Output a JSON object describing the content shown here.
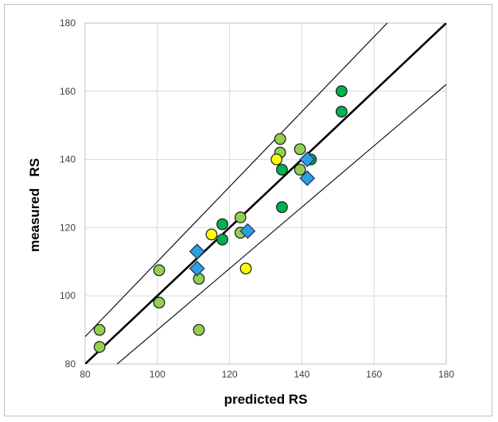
{
  "chart_data": {
    "type": "scatter",
    "title": "",
    "xlabel": "predicted RS",
    "ylabel": "measured   RS",
    "xlim": [
      80,
      180
    ],
    "ylim": [
      80,
      180
    ],
    "x_ticks": [
      80,
      100,
      120,
      140,
      160,
      180
    ],
    "y_ticks": [
      80,
      100,
      120,
      140,
      160,
      180
    ],
    "grid": true,
    "legend": "none",
    "reference_lines": [
      {
        "kind": "identity",
        "slope": 1,
        "intercept": 0,
        "emphasis": "bold"
      },
      {
        "kind": "upper-bound",
        "slope": 1.1,
        "intercept": 0,
        "emphasis": "thin"
      },
      {
        "kind": "lower-bound",
        "slope": 0.9,
        "intercept": 0,
        "emphasis": "thin"
      }
    ],
    "series": [
      {
        "marker": "circle",
        "color": "#92d050",
        "points": [
          [
            84,
            90
          ],
          [
            84,
            85
          ],
          [
            100.5,
            107.5
          ],
          [
            100.5,
            98
          ],
          [
            111.5,
            105
          ],
          [
            111.5,
            90
          ],
          [
            123,
            123
          ],
          [
            123,
            118.5
          ],
          [
            134,
            146
          ],
          [
            134,
            142
          ],
          [
            139.5,
            143
          ],
          [
            139.5,
            137
          ]
        ]
      },
      {
        "marker": "circle",
        "color": "#00b050",
        "points": [
          [
            118,
            121
          ],
          [
            118,
            116.5
          ],
          [
            134.5,
            137
          ],
          [
            134.5,
            126
          ],
          [
            142.5,
            140
          ],
          [
            151,
            160
          ],
          [
            151,
            154
          ]
        ]
      },
      {
        "marker": "circle",
        "color": "#ffff00",
        "points": [
          [
            115,
            118
          ],
          [
            124.5,
            108
          ],
          [
            133,
            140
          ]
        ]
      },
      {
        "marker": "diamond",
        "color": "#2e9ee0",
        "points": [
          [
            111,
            113
          ],
          [
            111,
            108
          ],
          [
            125,
            119
          ],
          [
            141.5,
            140
          ],
          [
            141.5,
            134.5
          ]
        ]
      }
    ]
  }
}
